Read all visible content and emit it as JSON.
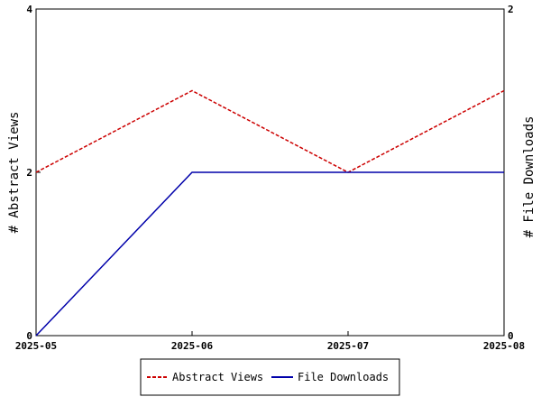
{
  "chart_data": {
    "type": "line",
    "categories": [
      "2025-05",
      "2025-06",
      "2025-07",
      "2025-08"
    ],
    "series": [
      {
        "name": "Abstract Views",
        "values": [
          2,
          3,
          2,
          3
        ],
        "axis": "left",
        "color": "#cc0000",
        "line_style": "dashed"
      },
      {
        "name": "File Downloads",
        "values": [
          0,
          1,
          1,
          1
        ],
        "axis": "right",
        "color": "#0000aa",
        "line_style": "solid"
      }
    ],
    "ylabel": "# Abstract Views",
    "y2label": "# File Downloads",
    "ylim": [
      0,
      4
    ],
    "y2lim": [
      0,
      2
    ],
    "y_ticks": [
      "0",
      "2",
      "4"
    ],
    "y2_ticks": [
      "0",
      "2"
    ],
    "grid": false,
    "legend_position": "bottom-center"
  }
}
